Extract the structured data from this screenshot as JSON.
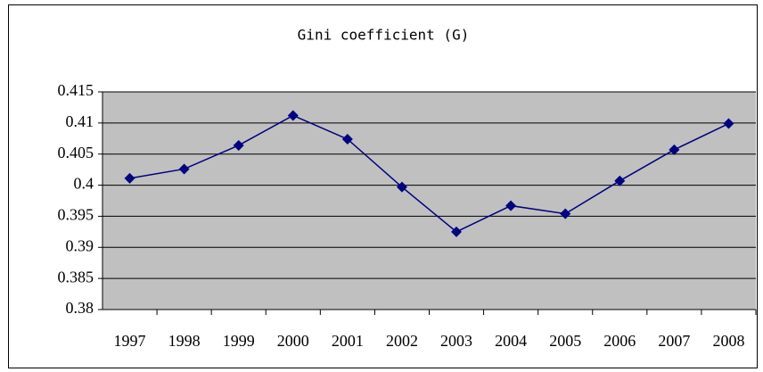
{
  "chart_data": {
    "type": "line",
    "title": "Gini coefficient (G)",
    "categories": [
      "1997",
      "1998",
      "1999",
      "2000",
      "2001",
      "2002",
      "2003",
      "2004",
      "2005",
      "2006",
      "2007",
      "2008"
    ],
    "values": [
      0.4011,
      0.4026,
      0.4064,
      0.4112,
      0.4074,
      0.3997,
      0.3925,
      0.3967,
      0.3954,
      0.4007,
      0.4057,
      0.4099
    ],
    "color": "#000080",
    "plot_background": "#c0c0c0",
    "ylim": [
      0.38,
      0.415
    ],
    "yticks": [
      0.38,
      0.385,
      0.39,
      0.395,
      0.4,
      0.405,
      0.41,
      0.415
    ],
    "grid": true
  }
}
